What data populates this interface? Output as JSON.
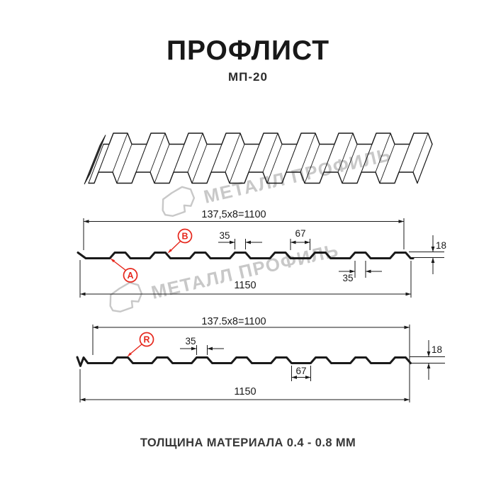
{
  "title": "ПРОФЛИСТ",
  "subtitle": "МП-20",
  "watermark": {
    "text": "МЕТАЛЛ ПРОФИЛЬ"
  },
  "section_top": {
    "working_width": "137,5x8=1100",
    "total_width": "1150",
    "rib_top_width": "35",
    "flat_width": "67",
    "rib_top_width_lower": "35",
    "height": "18",
    "marker_a": "A",
    "marker_b": "B"
  },
  "section_bottom": {
    "working_width": "137.5x8=1100",
    "total_width": "1150",
    "rib_top_width": "35",
    "flat_width": "67",
    "height": "18",
    "marker_r": "R"
  },
  "footer": {
    "text": "ТОЛЩИНА МАТЕРИАЛА 0.4 - 0.8 ММ"
  },
  "colors": {
    "line": "#1a1a1a",
    "accent_red": "#e6271c",
    "watermark_gray": "#c8c8c8"
  }
}
